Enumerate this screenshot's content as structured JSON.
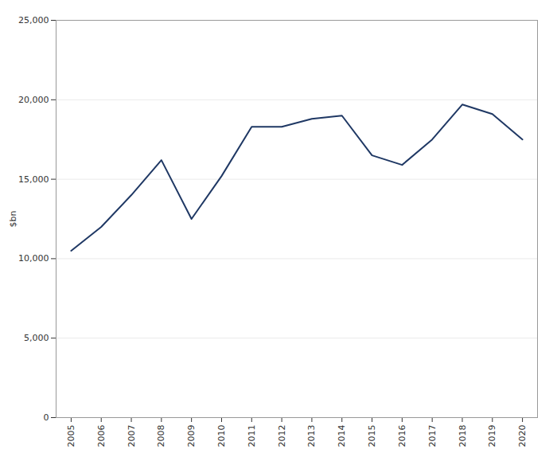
{
  "chart_data": {
    "type": "line",
    "x": [
      2005,
      2006,
      2007,
      2008,
      2009,
      2010,
      2011,
      2012,
      2013,
      2014,
      2015,
      2016,
      2017,
      2018,
      2019,
      2020
    ],
    "values": [
      10500,
      12000,
      14000,
      16200,
      12500,
      15200,
      18300,
      18300,
      18800,
      19000,
      16500,
      15900,
      17500,
      19700,
      19100,
      17500
    ],
    "color": "#1F3864",
    "ylabel": "$bn",
    "xlim": [
      2004.5,
      2020.5
    ],
    "xticks": [
      2005,
      2006,
      2007,
      2008,
      2009,
      2010,
      2011,
      2012,
      2013,
      2014,
      2015,
      2016,
      2017,
      2018,
      2019,
      2020
    ],
    "ylim": [
      0,
      25000
    ],
    "yticks": [
      0,
      {
        "value": 5000,
        "label": "5,000"
      },
      {
        "value": 10000,
        "label": "10,000"
      },
      {
        "value": 15000,
        "label": "15,000"
      },
      {
        "value": 20000,
        "label": "20,000"
      },
      {
        "value": 25000,
        "label": "25,000"
      }
    ],
    "grid": true
  }
}
